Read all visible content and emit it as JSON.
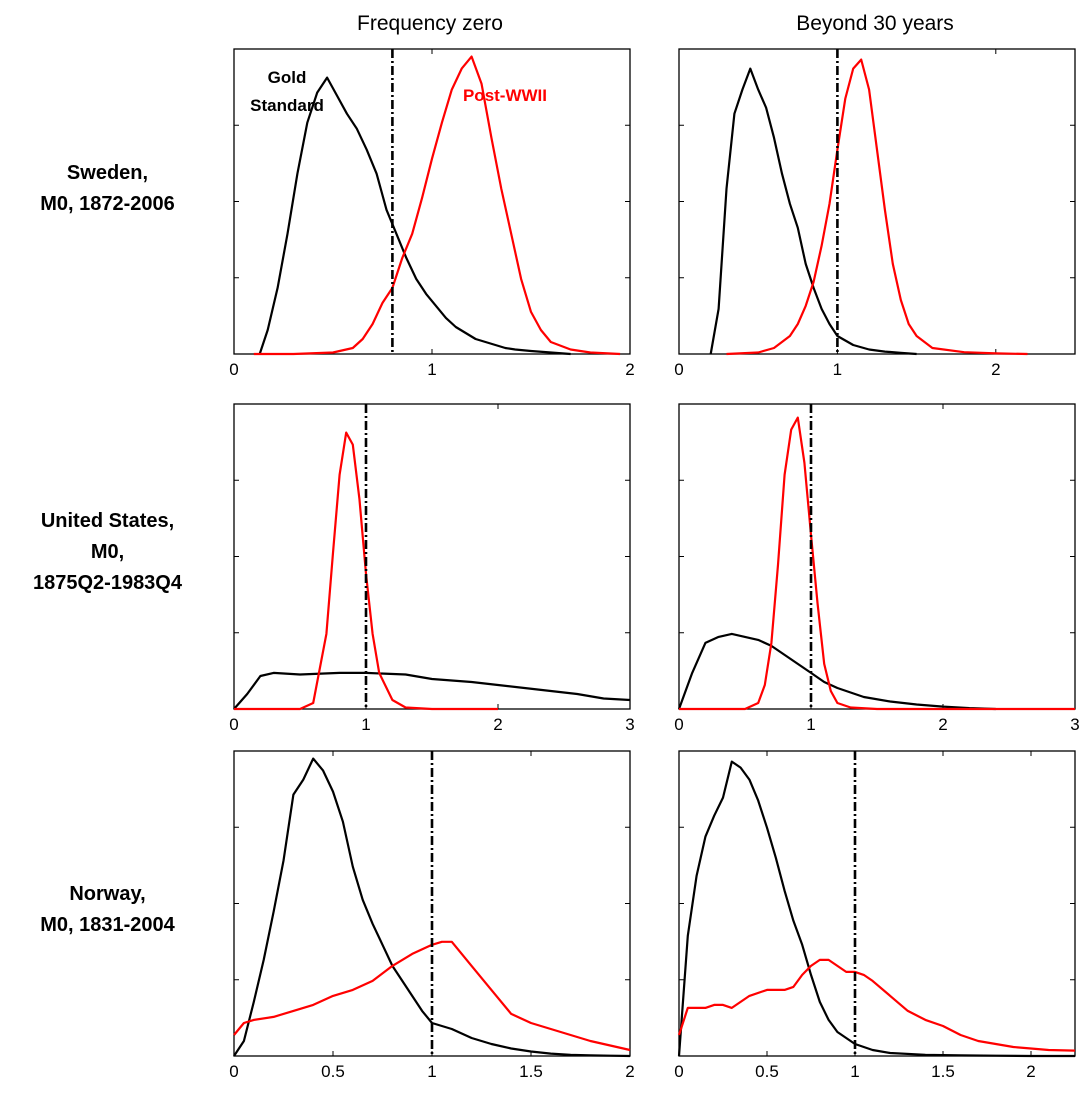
{
  "column_titles": [
    "Frequency zero",
    "Beyond 30 years"
  ],
  "row_labels": [
    [
      "Sweden,",
      "M0, 1872-2006"
    ],
    [
      "United States,",
      "M0,",
      "1875Q2-1983Q4"
    ],
    [
      "Norway,",
      "M0, 1831-2004"
    ]
  ],
  "colors": {
    "gold_standard": "#000000",
    "post_wwii": "#ff0000",
    "reference_line": "#000000"
  },
  "chart_data": [
    {
      "type": "line",
      "row": 0,
      "col": 0,
      "xlim": [
        0,
        2
      ],
      "ylim": [
        0,
        1
      ],
      "xticks": [
        0,
        1,
        2
      ],
      "xtick_labels": [
        "0",
        "1",
        "2"
      ],
      "vline": 0.8,
      "annotations": [
        {
          "text": "Gold",
          "color": "#000000",
          "near_series": "Gold Standard"
        },
        {
          "text": "Standard",
          "color": "#000000",
          "near_series": "Gold Standard"
        },
        {
          "text": "Post-WWII",
          "color": "#ff0000",
          "near_series": "Post-WWII"
        }
      ],
      "series": [
        {
          "color": "#000000",
          "x": [
            0.13,
            0.17,
            0.22,
            0.27,
            0.32,
            0.37,
            0.42,
            0.47,
            0.52,
            0.57,
            0.62,
            0.67,
            0.72,
            0.77,
            0.82,
            0.87,
            0.92,
            0.97,
            1.02,
            1.07,
            1.12,
            1.17,
            1.22,
            1.27,
            1.32,
            1.37,
            1.42,
            1.5,
            1.6,
            1.7
          ],
          "y": [
            0.0,
            0.08,
            0.22,
            0.4,
            0.6,
            0.77,
            0.87,
            0.92,
            0.86,
            0.8,
            0.75,
            0.68,
            0.6,
            0.48,
            0.4,
            0.32,
            0.25,
            0.2,
            0.16,
            0.12,
            0.09,
            0.07,
            0.05,
            0.04,
            0.03,
            0.02,
            0.015,
            0.01,
            0.005,
            0.0
          ]
        },
        {
          "color": "#ff0000",
          "x": [
            0.1,
            0.3,
            0.5,
            0.6,
            0.65,
            0.7,
            0.75,
            0.8,
            0.85,
            0.9,
            0.95,
            1.0,
            1.05,
            1.1,
            1.15,
            1.2,
            1.25,
            1.3,
            1.35,
            1.4,
            1.45,
            1.5,
            1.55,
            1.6,
            1.7,
            1.8,
            1.95
          ],
          "y": [
            0.0,
            0.0,
            0.005,
            0.02,
            0.05,
            0.1,
            0.17,
            0.22,
            0.32,
            0.4,
            0.52,
            0.65,
            0.77,
            0.88,
            0.95,
            0.99,
            0.9,
            0.72,
            0.55,
            0.4,
            0.25,
            0.14,
            0.08,
            0.04,
            0.015,
            0.005,
            0.0
          ]
        }
      ]
    },
    {
      "type": "line",
      "row": 0,
      "col": 1,
      "xlim": [
        0,
        2.5
      ],
      "ylim": [
        0,
        1
      ],
      "xticks": [
        0,
        1,
        2
      ],
      "xtick_labels": [
        "0",
        "1",
        "2"
      ],
      "vline": 1.0,
      "series": [
        {
          "color": "#000000",
          "x": [
            0.2,
            0.25,
            0.3,
            0.35,
            0.4,
            0.45,
            0.5,
            0.55,
            0.6,
            0.65,
            0.7,
            0.75,
            0.8,
            0.85,
            0.9,
            0.95,
            1.0,
            1.1,
            1.2,
            1.3,
            1.4,
            1.5
          ],
          "y": [
            0.0,
            0.15,
            0.55,
            0.8,
            0.88,
            0.95,
            0.88,
            0.82,
            0.72,
            0.6,
            0.5,
            0.42,
            0.3,
            0.22,
            0.15,
            0.1,
            0.06,
            0.03,
            0.015,
            0.008,
            0.004,
            0.0
          ]
        },
        {
          "color": "#ff0000",
          "x": [
            0.3,
            0.5,
            0.6,
            0.7,
            0.75,
            0.8,
            0.85,
            0.9,
            0.95,
            1.0,
            1.05,
            1.1,
            1.15,
            1.2,
            1.25,
            1.3,
            1.35,
            1.4,
            1.45,
            1.5,
            1.6,
            1.8,
            2.0,
            2.2
          ],
          "y": [
            0.0,
            0.005,
            0.02,
            0.06,
            0.1,
            0.16,
            0.24,
            0.36,
            0.5,
            0.68,
            0.85,
            0.95,
            0.98,
            0.88,
            0.68,
            0.48,
            0.3,
            0.18,
            0.1,
            0.06,
            0.02,
            0.006,
            0.002,
            0.0
          ]
        }
      ]
    },
    {
      "type": "line",
      "row": 1,
      "col": 0,
      "xlim": [
        0,
        3
      ],
      "ylim": [
        0,
        1
      ],
      "xticks": [
        0,
        1,
        2,
        3
      ],
      "xtick_labels": [
        "0",
        "1",
        "2",
        "3"
      ],
      "vline": 1.0,
      "series": [
        {
          "color": "#000000",
          "x": [
            0,
            0.1,
            0.2,
            0.3,
            0.5,
            0.8,
            1.0,
            1.3,
            1.5,
            1.8,
            2.0,
            2.3,
            2.6,
            2.8,
            3.0
          ],
          "y": [
            0.0,
            0.05,
            0.11,
            0.12,
            0.115,
            0.12,
            0.12,
            0.115,
            0.1,
            0.09,
            0.08,
            0.065,
            0.05,
            0.035,
            0.03
          ]
        },
        {
          "color": "#ff0000",
          "x": [
            0,
            0.5,
            0.6,
            0.7,
            0.75,
            0.8,
            0.85,
            0.9,
            0.95,
            1.0,
            1.05,
            1.1,
            1.2,
            1.3,
            1.5,
            1.8,
            2.0
          ],
          "y": [
            0.0,
            0.0,
            0.02,
            0.25,
            0.52,
            0.78,
            0.92,
            0.88,
            0.7,
            0.45,
            0.25,
            0.12,
            0.03,
            0.005,
            0.0,
            0.0,
            0.0
          ]
        }
      ]
    },
    {
      "type": "line",
      "row": 1,
      "col": 1,
      "xlim": [
        0,
        3
      ],
      "ylim": [
        0,
        1
      ],
      "xticks": [
        0,
        1,
        2,
        3
      ],
      "xtick_labels": [
        "0",
        "1",
        "2",
        "3"
      ],
      "vline": 1.0,
      "series": [
        {
          "color": "#000000",
          "x": [
            0,
            0.1,
            0.2,
            0.3,
            0.4,
            0.5,
            0.6,
            0.7,
            0.8,
            0.9,
            1.0,
            1.1,
            1.2,
            1.4,
            1.6,
            1.8,
            2.0,
            2.2,
            2.4
          ],
          "y": [
            0.0,
            0.12,
            0.22,
            0.24,
            0.25,
            0.24,
            0.23,
            0.21,
            0.18,
            0.15,
            0.12,
            0.09,
            0.07,
            0.04,
            0.025,
            0.015,
            0.008,
            0.003,
            0.0
          ]
        },
        {
          "color": "#ff0000",
          "x": [
            0,
            0.5,
            0.6,
            0.65,
            0.7,
            0.75,
            0.8,
            0.85,
            0.9,
            0.95,
            1.0,
            1.05,
            1.1,
            1.15,
            1.2,
            1.3,
            1.5,
            2.0,
            3.0
          ],
          "y": [
            0.0,
            0.0,
            0.02,
            0.08,
            0.22,
            0.48,
            0.78,
            0.93,
            0.97,
            0.82,
            0.58,
            0.35,
            0.15,
            0.06,
            0.02,
            0.005,
            0.0,
            0.0,
            0.0
          ]
        }
      ]
    },
    {
      "type": "line",
      "row": 2,
      "col": 0,
      "xlim": [
        0,
        2
      ],
      "ylim": [
        0,
        1
      ],
      "xticks": [
        0,
        0.5,
        1,
        1.5,
        2
      ],
      "xtick_labels": [
        "0",
        "0.5",
        "1",
        "1.5",
        "2"
      ],
      "vline": 1.0,
      "series": [
        {
          "color": "#000000",
          "x": [
            0,
            0.05,
            0.1,
            0.15,
            0.2,
            0.25,
            0.3,
            0.35,
            0.4,
            0.45,
            0.5,
            0.55,
            0.6,
            0.65,
            0.7,
            0.75,
            0.8,
            0.85,
            0.9,
            0.95,
            1.0,
            1.05,
            1.1,
            1.2,
            1.3,
            1.4,
            1.5,
            1.6,
            1.7,
            1.8,
            1.9,
            2.0
          ],
          "y": [
            0.0,
            0.05,
            0.18,
            0.32,
            0.48,
            0.65,
            0.87,
            0.92,
            0.99,
            0.95,
            0.88,
            0.78,
            0.63,
            0.52,
            0.44,
            0.37,
            0.3,
            0.25,
            0.2,
            0.15,
            0.11,
            0.1,
            0.09,
            0.06,
            0.04,
            0.025,
            0.015,
            0.008,
            0.004,
            0.002,
            0.001,
            0.0
          ]
        },
        {
          "color": "#ff0000",
          "x": [
            0,
            0.05,
            0.1,
            0.2,
            0.3,
            0.4,
            0.5,
            0.6,
            0.7,
            0.8,
            0.9,
            1.0,
            1.05,
            1.1,
            1.2,
            1.3,
            1.4,
            1.5,
            1.6,
            1.7,
            1.8,
            1.9,
            2.0
          ],
          "y": [
            0.07,
            0.11,
            0.12,
            0.13,
            0.15,
            0.17,
            0.2,
            0.22,
            0.25,
            0.3,
            0.34,
            0.37,
            0.38,
            0.38,
            0.3,
            0.22,
            0.14,
            0.11,
            0.09,
            0.07,
            0.05,
            0.035,
            0.02
          ]
        }
      ]
    },
    {
      "type": "line",
      "row": 2,
      "col": 1,
      "xlim": [
        0,
        2.25
      ],
      "ylim": [
        0,
        1
      ],
      "xticks": [
        0,
        0.5,
        1,
        1.5,
        2
      ],
      "xtick_labels": [
        "0",
        "0.5",
        "1",
        "1.5",
        "2"
      ],
      "vline": 1.0,
      "series": [
        {
          "color": "#000000",
          "x": [
            0,
            0.05,
            0.1,
            0.15,
            0.2,
            0.25,
            0.3,
            0.35,
            0.4,
            0.45,
            0.5,
            0.55,
            0.6,
            0.65,
            0.7,
            0.75,
            0.8,
            0.85,
            0.9,
            1.0,
            1.1,
            1.2,
            1.4,
            1.6,
            1.8,
            2.0,
            2.25
          ],
          "y": [
            0.0,
            0.4,
            0.6,
            0.73,
            0.8,
            0.86,
            0.98,
            0.96,
            0.92,
            0.85,
            0.76,
            0.66,
            0.55,
            0.45,
            0.37,
            0.27,
            0.18,
            0.12,
            0.08,
            0.04,
            0.02,
            0.01,
            0.004,
            0.002,
            0.001,
            0.0,
            0.0
          ]
        },
        {
          "color": "#ff0000",
          "x": [
            0,
            0.05,
            0.1,
            0.15,
            0.2,
            0.25,
            0.3,
            0.4,
            0.5,
            0.6,
            0.65,
            0.7,
            0.75,
            0.8,
            0.85,
            0.9,
            0.95,
            1.0,
            1.05,
            1.1,
            1.2,
            1.3,
            1.4,
            1.5,
            1.6,
            1.7,
            1.8,
            1.9,
            2.0,
            2.1,
            2.25
          ],
          "y": [
            0.07,
            0.16,
            0.16,
            0.16,
            0.17,
            0.17,
            0.16,
            0.2,
            0.22,
            0.22,
            0.23,
            0.27,
            0.3,
            0.32,
            0.32,
            0.3,
            0.28,
            0.28,
            0.27,
            0.25,
            0.2,
            0.15,
            0.12,
            0.1,
            0.07,
            0.05,
            0.04,
            0.03,
            0.025,
            0.02,
            0.018
          ]
        }
      ]
    }
  ]
}
